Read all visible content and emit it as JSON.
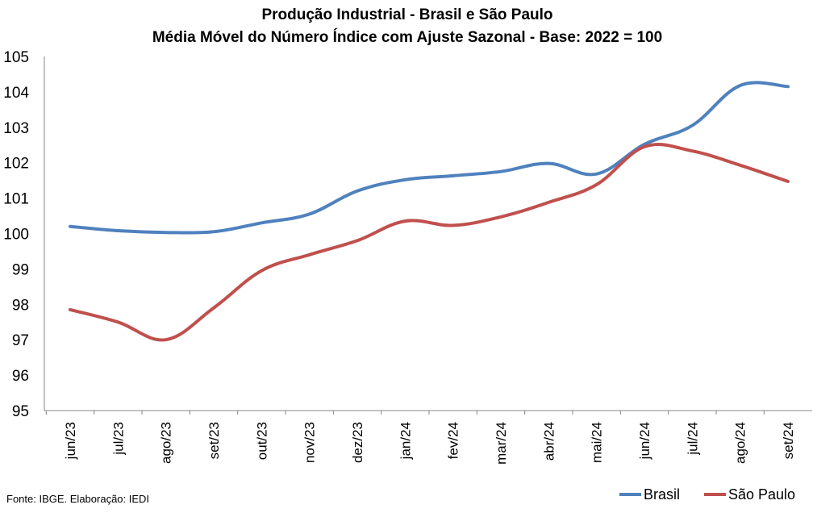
{
  "chart_data": {
    "type": "line",
    "title": "Produção Industrial - Brasil e São Paulo",
    "subtitle": "Média Móvel do Número Índice com Ajuste Sazonal - Base: 2022 = 100",
    "source": "Fonte: IBGE. Elaboração: IEDI",
    "xlabel": "",
    "ylabel": "",
    "ylim": [
      95,
      105
    ],
    "y_ticks": [
      "95",
      "96",
      "97",
      "98",
      "99",
      "100",
      "101",
      "102",
      "103",
      "104",
      "105"
    ],
    "categories": [
      "jun/23",
      "jul/23",
      "ago/23",
      "set/23",
      "out/23",
      "nov/23",
      "dez/23",
      "jan/24",
      "fev/24",
      "mar/24",
      "abr/24",
      "mai/24",
      "jun/24",
      "jul/24",
      "ago/24",
      "set/24"
    ],
    "grid": false,
    "legend_position": "bottom-right",
    "series": [
      {
        "name": "Brasil",
        "color": "#4f81bd",
        "values": [
          100.2,
          100.08,
          100.03,
          100.05,
          100.3,
          100.55,
          101.2,
          101.52,
          101.63,
          101.75,
          101.98,
          101.68,
          102.52,
          103.05,
          104.18,
          104.15
        ]
      },
      {
        "name": "São Paulo",
        "color": "#c0504d",
        "values": [
          97.85,
          97.5,
          97.0,
          97.9,
          98.95,
          99.4,
          99.8,
          100.35,
          100.23,
          100.47,
          100.88,
          101.38,
          102.45,
          102.33,
          101.93,
          101.47
        ]
      }
    ]
  }
}
